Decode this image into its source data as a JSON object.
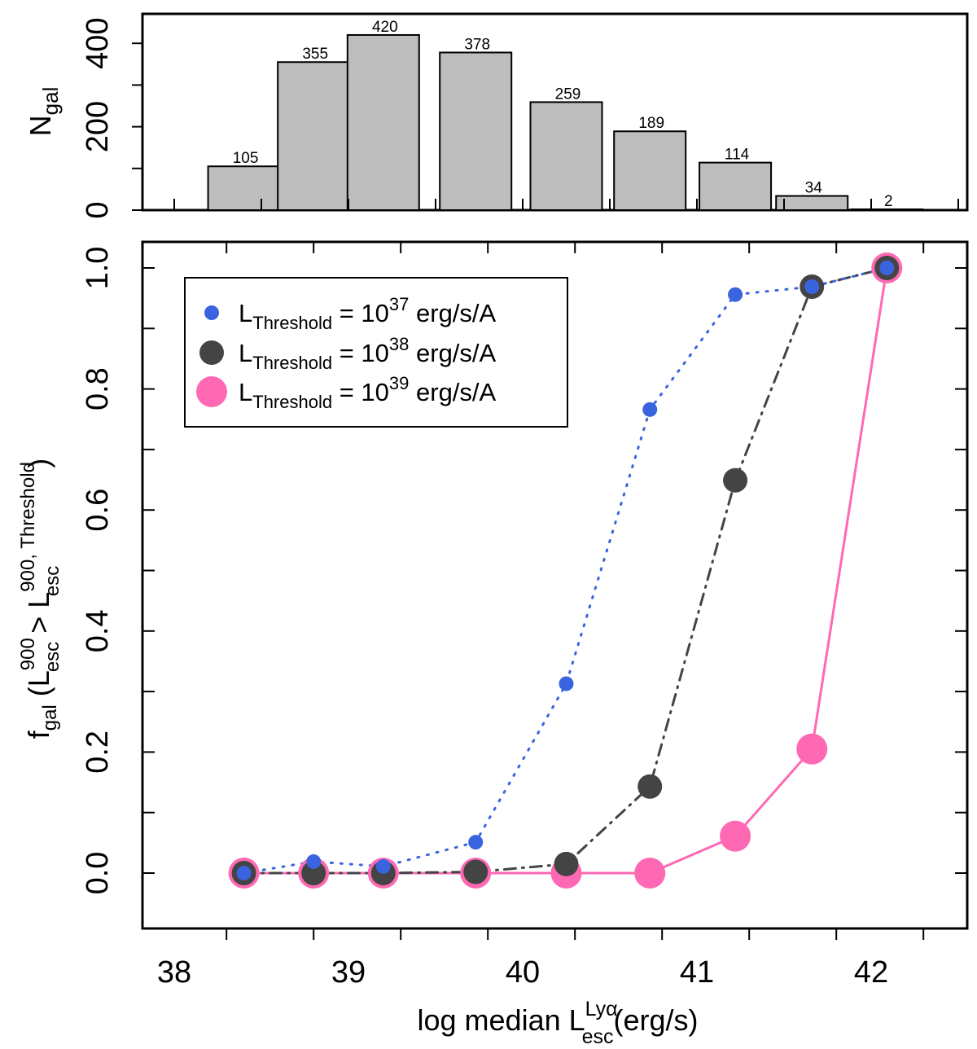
{
  "chart_data": [
    {
      "type": "bar",
      "x": [
        38.4,
        38.8,
        39.2,
        39.73,
        40.25,
        40.73,
        41.22,
        41.66,
        42.09
      ],
      "values": [
        105,
        355,
        420,
        378,
        259,
        189,
        114,
        34,
        2
      ],
      "value_labels": [
        "105",
        "355",
        "420",
        "378",
        "259",
        "189",
        "114",
        "34",
        "2"
      ],
      "ylabel": {
        "main": "N",
        "sub": "gal"
      },
      "ylim": [
        0,
        470
      ],
      "yticks": [
        0,
        200,
        400
      ],
      "ytick_labels": [
        "0",
        "200",
        "400"
      ],
      "ticks_every": 100
    },
    {
      "type": "line",
      "xlim": [
        37.8,
        42.62
      ],
      "ylim": [
        -0.09,
        1.04
      ],
      "xticks": [
        38,
        39,
        40,
        41,
        42
      ],
      "xtick_labels": [
        "38",
        "39",
        "40",
        "41",
        "42"
      ],
      "yticks": [
        0.0,
        0.2,
        0.4,
        0.6,
        0.8,
        1.0
      ],
      "ytick_labels": [
        "0.0",
        "0.2",
        "0.4",
        "0.6",
        "0.8",
        "1.0"
      ],
      "minor_step": 0.5,
      "xlabel": {
        "pre": "log median L",
        "sup": "Lyα",
        "sub": "esc",
        "post": "(erg/s)"
      },
      "ylabel": {
        "f": "f",
        "f_sub": "gal",
        "open": " (L",
        "sub1": "esc",
        "sup1": "900",
        "gt": " > L",
        "sub2": "esc",
        "sup2": "900, Threshold",
        "close": " )"
      },
      "series": [
        {
          "name": "L_Threshold = 10^37 erg/s/A",
          "color": "#3a63e0",
          "style": "dotted",
          "x": [
            38.4,
            38.8,
            39.2,
            39.73,
            40.25,
            40.73,
            41.22,
            41.66,
            42.09
          ],
          "y": [
            0.0,
            0.019,
            0.011,
            0.051,
            0.313,
            0.766,
            0.956,
            0.969,
            1.0
          ]
        },
        {
          "name": "L_Threshold = 10^38 erg/s/A",
          "color": "#444444",
          "style": "dashdot",
          "x": [
            38.4,
            38.8,
            39.2,
            39.73,
            40.25,
            40.73,
            41.22,
            41.66,
            42.09
          ],
          "y": [
            0.0,
            0.0,
            0.0,
            0.002,
            0.015,
            0.143,
            0.649,
            0.969,
            1.0
          ]
        },
        {
          "name": "L_Threshold = 10^39 erg/s/A",
          "color": "#ff69b4",
          "style": "solid",
          "x": [
            38.4,
            38.8,
            39.2,
            39.73,
            40.25,
            40.73,
            41.22,
            41.66,
            42.09
          ],
          "y": [
            0.0,
            0.0,
            0.0,
            0.0,
            0.0,
            0.0,
            0.061,
            0.205,
            1.0
          ]
        }
      ],
      "legend": {
        "placement": "top-left",
        "items": [
          {
            "base": "L",
            "sub": "Threshold",
            "mid": " = 10",
            "exp": "37",
            "unit": " erg/s/A"
          },
          {
            "base": "L",
            "sub": "Threshold",
            "mid": " = 10",
            "exp": "38",
            "unit": " erg/s/A"
          },
          {
            "base": "L",
            "sub": "Threshold",
            "mid": " = 10",
            "exp": "39",
            "unit": " erg/s/A"
          }
        ]
      }
    }
  ]
}
